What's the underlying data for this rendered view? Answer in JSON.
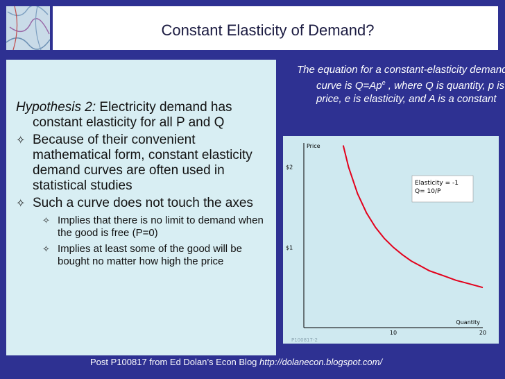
{
  "slide": {
    "title": "Constant Elasticity of Demand?"
  },
  "left": {
    "hypothesis_label": "Hypothesis 2:",
    "hypothesis_text": " Electricity demand has constant elasticity for all P and Q",
    "bullets": [
      "Because of their convenient mathematical form, constant elasticity demand curves are often used in statistical studies",
      "Such a curve does not touch the axes"
    ],
    "subbullets": [
      "Implies that there is no limit to demand when the good is free (P=0)",
      "Implies at least some of the good will be bought no matter how high the price"
    ]
  },
  "equation": {
    "text_a": "The equation for a constant-elasticity demand curve is Q=Ap",
    "superscript": "e",
    "text_b": " , where Q is quantity, p is price, e is elasticity, and A is a constant"
  },
  "chart_data": {
    "type": "line",
    "ylabel": "Price",
    "xlabel": "Quantity",
    "y_ticks": [
      {
        "value": 1,
        "label": "$1"
      },
      {
        "value": 2,
        "label": "$2"
      }
    ],
    "x_ticks": [
      {
        "value": 10,
        "label": "10"
      },
      {
        "value": 20,
        "label": "20"
      }
    ],
    "xlim": [
      0,
      20
    ],
    "ylim": [
      0,
      2.3
    ],
    "annotation_lines": [
      "Elasticity = -1",
      "Q= 10/P"
    ],
    "watermark": "P100817-2",
    "series": [
      {
        "color": "#e3001b",
        "x": [
          4.4,
          5,
          6,
          7,
          8,
          9,
          10,
          11,
          12,
          13,
          14,
          15,
          16,
          17,
          18,
          19,
          20
        ],
        "y": [
          2.27,
          2.0,
          1.67,
          1.43,
          1.25,
          1.11,
          1.0,
          0.91,
          0.83,
          0.77,
          0.71,
          0.67,
          0.63,
          0.59,
          0.56,
          0.53,
          0.5
        ]
      }
    ]
  },
  "footer": {
    "text": "Post P100817 from Ed Dolan’s Econ Blog ",
    "link": "http://dolanecon.blogspot.com/"
  },
  "colors": {
    "background": "#2e3192",
    "panel": "#d8eef3",
    "chart_panel": "#cfe9f0",
    "curve": "#e3001b"
  }
}
